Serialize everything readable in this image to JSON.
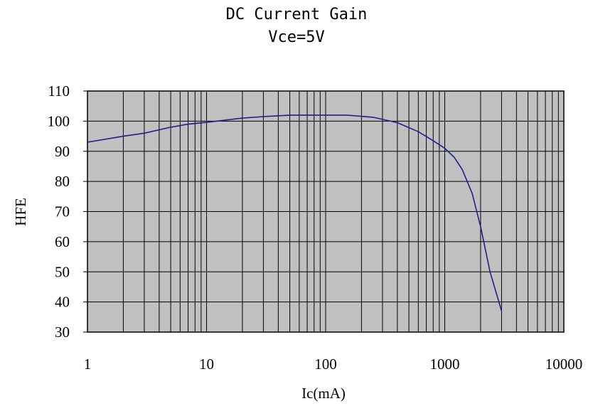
{
  "chart_data": {
    "type": "line",
    "title": "DC Current Gain",
    "subtitle": "Vce=5V",
    "xlabel": "Ic(mA)",
    "ylabel": "HFE",
    "x_scale": "log",
    "xlim": [
      1,
      10000
    ],
    "ylim": [
      30,
      110
    ],
    "x_ticks": [
      "1",
      "10",
      "100",
      "1000",
      "10000"
    ],
    "y_ticks": [
      "110",
      "100",
      "90",
      "80",
      "70",
      "60",
      "50",
      "40",
      "30"
    ],
    "grid": true,
    "series": [
      {
        "x": [
          1,
          2,
          3,
          5,
          7,
          10,
          20,
          30,
          50,
          70,
          100,
          150,
          250,
          400,
          600,
          800,
          1000,
          1200,
          1400,
          1700,
          2000,
          2400,
          3000
        ],
        "y": [
          93,
          95,
          96,
          98,
          99,
          99.6,
          101,
          101.5,
          102,
          102,
          102,
          102,
          101.3,
          99.5,
          96.5,
          93.5,
          91,
          88,
          84,
          76,
          65,
          50,
          37
        ]
      }
    ],
    "colors": {
      "plot_background": "#c0c0c0",
      "line": "#1f1f8f",
      "grid": "#000000"
    }
  }
}
